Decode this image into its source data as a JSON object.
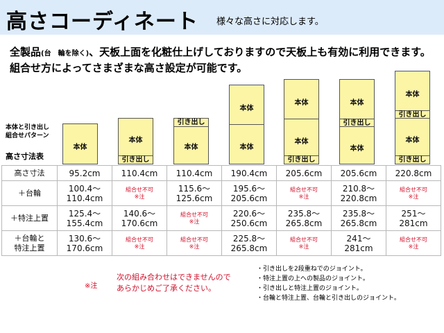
{
  "header": {
    "title": "高さコーディネート",
    "subtitle": "様々な高さに対応します。"
  },
  "intro": {
    "line1_a": "全製品",
    "line1_small": "(台　輪を除く)",
    "line1_b": "、天板上面を化粧仕上げしておりますので天板上も有効に利用できます。",
    "line2": "組合せ方によってさまざまな高さ設定が可能です。"
  },
  "pattern_label": [
    "本体と引き出し",
    "組合せパターン"
  ],
  "size_table_label": "高さ寸法表",
  "labels": {
    "hontai": "本体",
    "drawer": "引き出し"
  },
  "table": {
    "rows": [
      {
        "head": [
          "高さ寸法"
        ],
        "cells": [
          {
            "lines": [
              "95.2cm"
            ]
          },
          {
            "lines": [
              "110.4cm"
            ]
          },
          {
            "lines": [
              "110.4cm"
            ]
          },
          {
            "lines": [
              "190.4cm"
            ]
          },
          {
            "lines": [
              "205.6cm"
            ]
          },
          {
            "lines": [
              "205.6cm"
            ]
          },
          {
            "lines": [
              "220.8cm"
            ]
          }
        ]
      },
      {
        "head": [
          "＋台輪"
        ],
        "cells": [
          {
            "lines": [
              "100.4〜",
              "110.4cm"
            ]
          },
          {
            "ng": true,
            "lines": [
              "組合せ不可",
              "※注"
            ]
          },
          {
            "lines": [
              "115.6〜",
              "125.6cm"
            ]
          },
          {
            "lines": [
              "195.6〜",
              "205.6cm"
            ]
          },
          {
            "ng": true,
            "lines": [
              "組合せ不可",
              "※注"
            ]
          },
          {
            "lines": [
              "210.8〜",
              "220.8cm"
            ]
          },
          {
            "ng": true,
            "lines": [
              "組合せ不可",
              "※注"
            ]
          }
        ]
      },
      {
        "head": [
          "＋特注上置"
        ],
        "cells": [
          {
            "lines": [
              "125.4〜",
              "155.4cm"
            ]
          },
          {
            "lines": [
              "140.6〜",
              "170.6cm"
            ]
          },
          {
            "ng": true,
            "lines": [
              "組合せ不可",
              "※注"
            ]
          },
          {
            "lines": [
              "220.6〜",
              "250.6cm"
            ]
          },
          {
            "lines": [
              "235.8〜",
              "265.8cm"
            ]
          },
          {
            "lines": [
              "235.8〜",
              "265.8cm"
            ]
          },
          {
            "lines": [
              "251〜",
              "281cm"
            ]
          }
        ]
      },
      {
        "head": [
          "＋台輪と",
          "特注上置"
        ],
        "cells": [
          {
            "lines": [
              "130.6〜",
              "170.6cm"
            ]
          },
          {
            "ng": true,
            "lines": [
              "組合せ不可",
              "※注"
            ]
          },
          {
            "ng": true,
            "lines": [
              "組合せ不可",
              "※注"
            ]
          },
          {
            "lines": [
              "225.8〜",
              "265.8cm"
            ]
          },
          {
            "ng": true,
            "lines": [
              "組合せ不可",
              "※注"
            ]
          },
          {
            "lines": [
              "241〜",
              "281cm"
            ]
          },
          {
            "ng": true,
            "lines": [
              "組合せ不可",
              "※注"
            ]
          }
        ]
      }
    ]
  },
  "note": {
    "mark": "※注",
    "text": [
      "次の組み合わせはできませんので",
      "あらかじめご了承ください。"
    ],
    "items": [
      "・引き出しを2段重ねでのジョイント。",
      "・特注上置の上への製品のジョイント。",
      "・引き出しと特注上置のジョイント。",
      "・台輪と特注上置、台輪と引き出しのジョイント。"
    ]
  }
}
